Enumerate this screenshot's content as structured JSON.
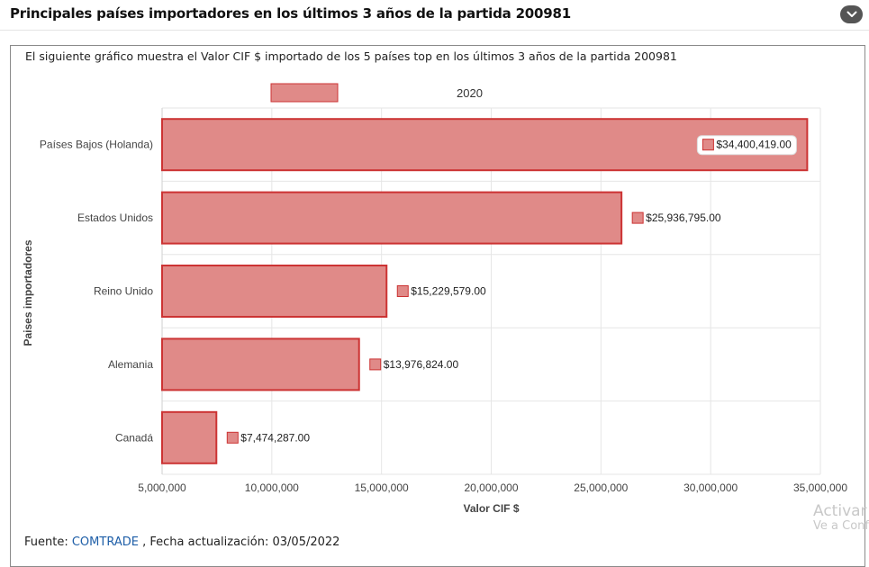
{
  "header": {
    "title": "Principales países importadores en los últimos 3 años de la partida 200981"
  },
  "description": "El siguiente gráfico muestra el Valor CIF $ importado de los 5 países top en los últimos 3 años de la partida 200981",
  "chart_data": {
    "type": "bar",
    "orientation": "horizontal",
    "categories": [
      "Países Bajos (Holanda)",
      "Estados Unidos",
      "Reino Unido",
      "Alemania",
      "Canadá"
    ],
    "series": [
      {
        "name": "2020",
        "values": [
          34400419,
          25936795,
          15229579,
          13976824,
          7474287
        ]
      }
    ],
    "data_labels": [
      "$34,400,419.00",
      "$25,936,795.00",
      "$15,229,579.00",
      "$13,976,824.00",
      "$7,474,287.00"
    ],
    "xlabel": "Valor CIF $",
    "ylabel": "Paises importadores",
    "xlim": [
      5000000,
      35000000
    ],
    "xticks": [
      5000000,
      10000000,
      15000000,
      20000000,
      25000000,
      30000000,
      35000000
    ],
    "xtick_labels": [
      "5,000,000",
      "10,000,000",
      "15,000,000",
      "20,000,000",
      "25,000,000",
      "30,000,000",
      "35,000,000"
    ],
    "legend": "top",
    "bar_fill": "#e08a88",
    "bar_stroke": "#cc3333"
  },
  "footer": {
    "prefix": "Fuente:",
    "source_link": "COMTRADE",
    "updated": ", Fecha actualización: 03/05/2022"
  },
  "watermark": {
    "line1": "Activar",
    "line2": "Ve a Conf"
  }
}
